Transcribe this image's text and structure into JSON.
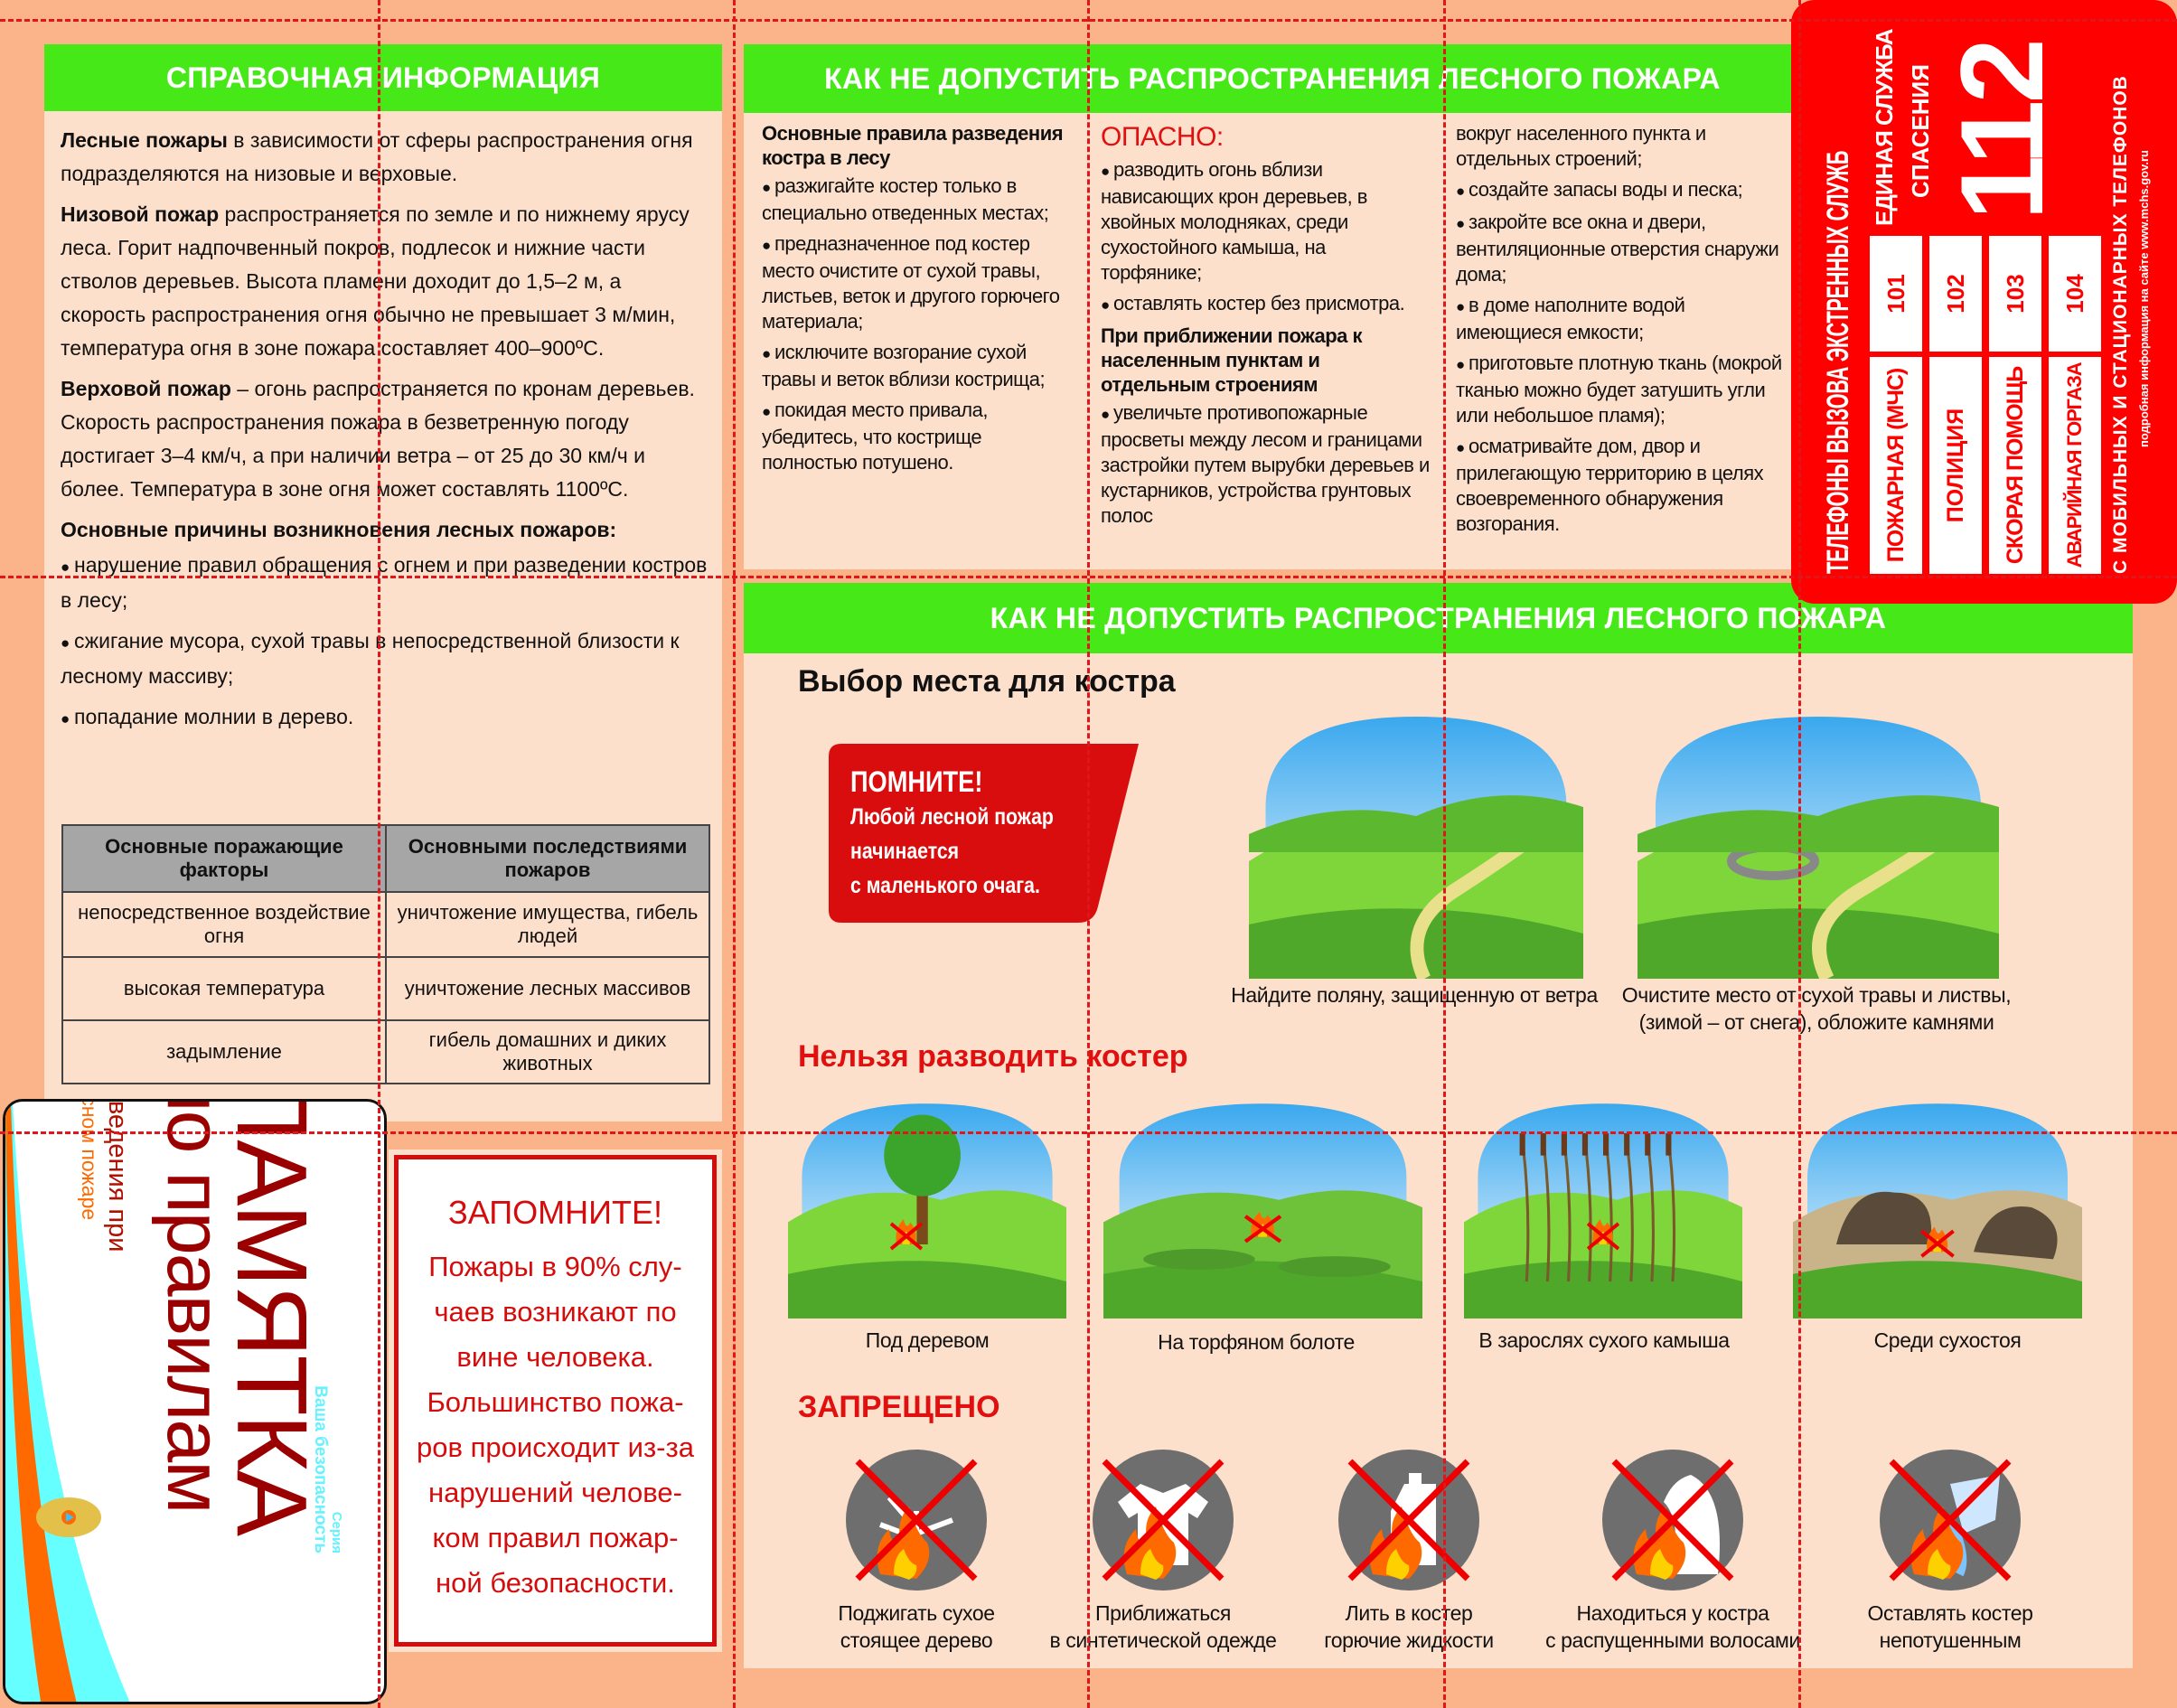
{
  "left": {
    "header": "СПРАВОЧНАЯ ИНФОРМАЦИЯ",
    "paragraphs": [
      {
        "bold": "Лесные пожары",
        "text": " в зависимости от сферы распространения огня подразделяются на низовые и верховые."
      },
      {
        "bold": "Низовой пожар",
        "text": " распространяется по земле и по нижнему ярусу леса. Горит надпочвенный покров, подлесок и нижние части стволов деревьев. Высота пламени доходит до 1,5–2 м, а скорость распространения огня обычно не превышает 3 м/мин, температура огня в зоне пожара составляет 400–900ºС."
      },
      {
        "bold": "Верховой пожар",
        "text": " – огонь распространяется по кронам деревьев. Скорость распространения пожара в безветренную погоду достигает 3–4 км/ч, а при наличии ветра – от 25 до 30 км/ч и более. Температура в зоне огня может составлять 1100ºС."
      }
    ],
    "causes_title": "Основные причины возникновения лесных пожаров:",
    "causes": [
      "нарушение правил обращения с огнем и при разведении костров в лесу;",
      "сжигание мусора, сухой травы в непосредственной близости к лесному массиву;",
      "попадание молнии в дерево."
    ],
    "table": {
      "headers": [
        "Основные поражающие факторы",
        "Основными последствиями пожаров"
      ],
      "rows": [
        [
          "непосредственное воздействие огня",
          "уничтожение имущества, гибель людей"
        ],
        [
          "высокая температура",
          "уничтожение лесных массивов"
        ],
        [
          "задымление",
          "гибель домашних и диких животных"
        ]
      ]
    }
  },
  "top_middle": {
    "header": "КАК НЕ ДОПУСТИТЬ РАСПРОСТРАНЕНИЯ ЛЕСНОГО ПОЖАРА",
    "col1": {
      "title": "Основные правила разведения костра в лесу",
      "items": [
        "разжигайте костер только в специально отведенных местах;",
        "предназначенное под костер место очистите от сухой травы, листьев, веток и другого горючего материала;",
        "исключите возгорание сухой травы и веток вблизи кострища;",
        "покидая место привала, убедитесь, что кострище полностью потушено."
      ]
    },
    "col2": {
      "danger_title": "ОПАСНО:",
      "danger_items": [
        "разводить огонь вблизи нависающих крон деревьев, в хвойных молодняках, среди сухостойного камыша, на торфянике;",
        "оставлять костер без присмотра."
      ],
      "approach_title": "При приближении пожара к населенным пунктам и отдельным строениям",
      "approach_items": [
        "увеличьте противопожарные просветы между лесом и границами застройки путем вырубки деревьев и кустарников, устройства грунтовых полос"
      ]
    },
    "col3": {
      "continuation": "вокруг населенного пункта и отдельных строений;",
      "items": [
        "создайте запасы воды и песка;",
        "закройте все окна и двери, вентиляционные отверстия снаружи дома;",
        "в доме наполните водой имеющиеся емкости;",
        "приготовьте плотную ткань (мокрой тканью можно будет затушить угли или небольшое пламя);",
        "осматривайте дом, двор и прилегающую территорию в целях своевременного обнаружения возгорания."
      ]
    }
  },
  "phones": {
    "title": "ТЕЛЕФОНЫ ВЫЗОВА ЭКСТРЕННЫХ СЛУЖБ",
    "services": [
      {
        "name": "ПОЖАРНАЯ (МЧС)",
        "number": "101"
      },
      {
        "name": "ПОЛИЦИЯ",
        "number": "102"
      },
      {
        "name": "СКОРАЯ ПОМОЩЬ",
        "number": "103"
      },
      {
        "name": "АВАРИЙНАЯ ГОРГАЗА",
        "number": "104"
      }
    ],
    "unified_line1": "ЕДИНАЯ СЛУЖБА",
    "unified_line2": "СПАСЕНИЯ",
    "unified_number": "112",
    "footer": "С МОБИЛЬНЫХ И СТАЦИОНАРНЫХ ТЕЛЕФОНОВ",
    "site_note": "подробная информация на сайте www.mchs.gov.ru",
    "color": "#ff0000"
  },
  "bottom": {
    "header": "КАК НЕ ДОПУСТИТЬ РАСПРОСТРАНЕНИЯ ЛЕСНОГО ПОЖАРА",
    "choice_title": "Выбор места для костра",
    "remember": {
      "title": "ПОМНИТЕ!",
      "lines": [
        "Любой лесной пожар",
        "начинается",
        "с маленького очага."
      ]
    },
    "choice_captions": [
      [
        "Найдите поляну, защищенную от ветра"
      ],
      [
        "Очистите место от сухой травы и листвы,",
        "(зимой – от снега), обложите камнями"
      ]
    ],
    "no_fire_title": "Нельзя разводить костер",
    "no_fire": [
      "Под деревом",
      "На торфяном болоте",
      "В зарослях сухого камыша",
      "Среди сухостоя"
    ],
    "forbidden_title": "ЗАПРЕЩЕНО",
    "forbidden": [
      {
        "icon": "dry-tree-icon",
        "lines": [
          "Поджигать сухое",
          "стоящее дерево"
        ]
      },
      {
        "icon": "synthetic-clothes-icon",
        "lines": [
          "Приближаться",
          "в синтетической одежде"
        ]
      },
      {
        "icon": "flammable-liquid-icon",
        "lines": [
          "Лить в костер",
          "горючие жидкости"
        ]
      },
      {
        "icon": "loose-hair-icon",
        "lines": [
          "Находиться у костра",
          "с распущенными волосами"
        ]
      },
      {
        "icon": "water-bucket-icon",
        "lines": [
          "Оставлять костер",
          "непотушенным"
        ]
      }
    ]
  },
  "memo": {
    "title": "ПАМЯТКА",
    "subtitle": "по правилам",
    "line1": "поведения при",
    "line2": "лесном пожаре",
    "series_label": "Серия",
    "series": "Ваша безопасность"
  },
  "notice": {
    "title": "ЗАПОМНИТЕ!",
    "lines": [
      "Пожары в 90% слу-",
      "чаев возникают по",
      "вине человека.",
      "Большинство пожа-",
      "ров происходит из-за",
      "нарушений челове-",
      "ком правил пожар-",
      "ной безопасности."
    ]
  }
}
